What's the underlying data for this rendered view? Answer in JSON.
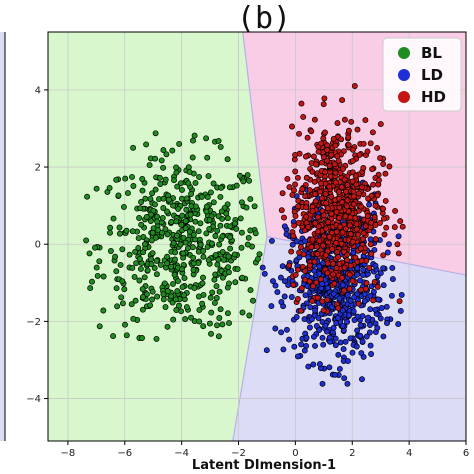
{
  "chart_data": {
    "type": "scatter",
    "panel_label": "(b)",
    "xlabel": "Latent DImension-1",
    "ylabel": "",
    "xlim": [
      -8.7,
      6.0
    ],
    "ylim": [
      -5.1,
      5.5
    ],
    "x_ticks": [
      -8,
      -6,
      -4,
      -2,
      0,
      2,
      4,
      6
    ],
    "y_ticks": [
      4,
      2,
      0,
      -2,
      -4
    ],
    "grid": true,
    "legend_position": "top-right",
    "colors": {
      "BL": "#1e8c1e",
      "LD": "#1f2fd6",
      "HD": "#c41515",
      "BL_region": "#d9f7cc",
      "LD_region": "#dcdcf7",
      "HD_region": "#f9cde6",
      "boundary": "#b8b0e8",
      "grid": "#c8c8c8",
      "point_edge": "#000000"
    },
    "decision_regions": [
      {
        "class": "BL",
        "polygon": [
          [
            -8.7,
            5.5
          ],
          [
            -1.85,
            5.5
          ],
          [
            -1.0,
            0.2
          ],
          [
            -2.2,
            -5.1
          ],
          [
            -8.7,
            -5.1
          ]
        ]
      },
      {
        "class": "HD",
        "polygon": [
          [
            -1.85,
            5.5
          ],
          [
            6.0,
            5.5
          ],
          [
            6.0,
            -0.8
          ],
          [
            -1.0,
            0.2
          ]
        ]
      },
      {
        "class": "LD",
        "polygon": [
          [
            -1.0,
            0.2
          ],
          [
            6.0,
            -0.8
          ],
          [
            6.0,
            -5.1
          ],
          [
            -2.2,
            -5.1
          ]
        ]
      }
    ],
    "series": [
      {
        "name": "BL",
        "n": 560,
        "center": [
          -4.0,
          0.0
        ],
        "spread": [
          1.45,
          1.15
        ],
        "range": [
          [
            -7.8,
            -1.2
          ],
          [
            -2.5,
            3.4
          ]
        ]
      },
      {
        "name": "LD",
        "n": 700,
        "center": [
          1.4,
          -1.0
        ],
        "spread": [
          0.85,
          1.0
        ],
        "range": [
          [
            -1.3,
            5.2
          ],
          [
            -3.7,
            1.6
          ]
        ]
      },
      {
        "name": "HD",
        "n": 700,
        "center": [
          1.4,
          0.9
        ],
        "spread": [
          0.8,
          1.1
        ],
        "range": [
          [
            -0.5,
            4.0
          ],
          [
            -1.8,
            4.4
          ]
        ]
      }
    ]
  }
}
